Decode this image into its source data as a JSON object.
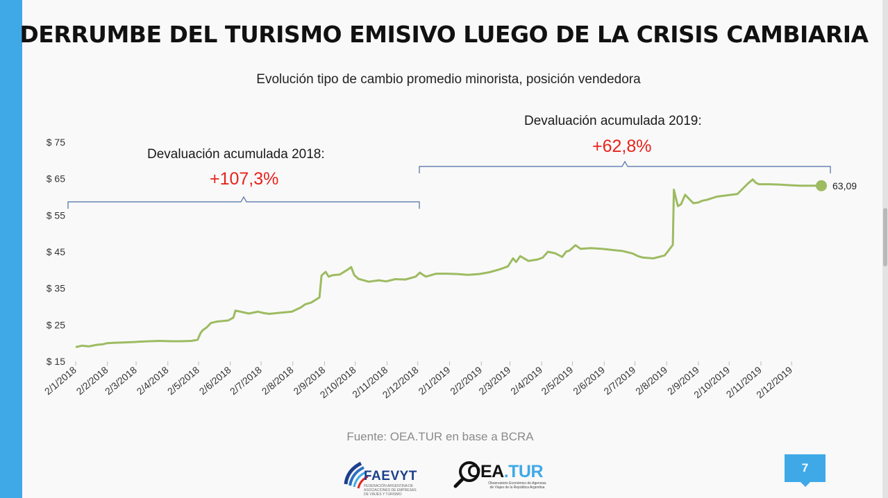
{
  "slide": {
    "title": "DERRUMBE DEL TURISMO EMISIVO LUEGO DE LA CRISIS CAMBIARIA",
    "source": "Fuente: OEA.TUR en base a BCRA",
    "page_number": "7",
    "logos": {
      "faevyt_name": "FAEVYT",
      "faevyt_subtitle": "FEDERACIÓN ARGENTINA DE ASOCIACIONES DE EMPRESAS DE VIAJES Y TURISMO",
      "oea_name": "OEA",
      "oea_suffix": ".TUR",
      "oea_subtitle": "Observatorio Económico de Agencias de Viajes de la República Argentina"
    },
    "colors": {
      "accent": "#3fa9e8",
      "line": "#9dbb61",
      "highlight": "#e8221b"
    }
  },
  "chart_data": {
    "type": "line",
    "title": "Evolución tipo de cambio promedio minorista, posición vendedora",
    "xlabel": "",
    "ylabel": "",
    "y_ticks": [
      "$ 15",
      "$ 25",
      "$ 35",
      "$ 45",
      "$ 55",
      "$ 65",
      "$ 75"
    ],
    "ylim": [
      15,
      75
    ],
    "x_ticks": [
      "2/1/2018",
      "2/2/2018",
      "2/3/2018",
      "2/4/2018",
      "2/5/2018",
      "2/6/2018",
      "2/7/2018",
      "2/8/2018",
      "2/9/2018",
      "2/10/2018",
      "2/11/2018",
      "2/12/2018",
      "2/1/2019",
      "2/2/2019",
      "2/3/2019",
      "2/4/2019",
      "2/5/2019",
      "2/6/2019",
      "2/7/2019",
      "2/8/2019",
      "2/9/2019",
      "2/10/2019",
      "2/11/2019",
      "2/12/2019"
    ],
    "grid": false,
    "series": [
      {
        "color": "#9dbb61",
        "x": [
          "2018-01-02",
          "2018-01-08",
          "2018-01-15",
          "2018-01-22",
          "2018-01-29",
          "2018-02-02",
          "2018-02-10",
          "2018-02-20",
          "2018-02-28",
          "2018-03-05",
          "2018-03-15",
          "2018-03-25",
          "2018-04-05",
          "2018-04-15",
          "2018-04-25",
          "2018-05-01",
          "2018-05-04",
          "2018-05-06",
          "2018-05-10",
          "2018-05-14",
          "2018-05-20",
          "2018-05-31",
          "2018-06-05",
          "2018-06-07",
          "2018-06-15",
          "2018-06-20",
          "2018-06-29",
          "2018-07-05",
          "2018-07-10",
          "2018-07-20",
          "2018-08-01",
          "2018-08-10",
          "2018-08-14",
          "2018-08-20",
          "2018-08-28",
          "2018-08-30",
          "2018-09-03",
          "2018-09-06",
          "2018-09-10",
          "2018-09-17",
          "2018-09-25",
          "2018-09-28",
          "2018-10-01",
          "2018-10-05",
          "2018-10-10",
          "2018-10-15",
          "2018-10-25",
          "2018-11-01",
          "2018-11-10",
          "2018-11-20",
          "2018-11-30",
          "2018-12-04",
          "2018-12-07",
          "2018-12-10",
          "2018-12-15",
          "2018-12-20",
          "2018-12-31",
          "2019-01-10",
          "2019-01-20",
          "2019-01-31",
          "2019-02-10",
          "2019-02-20",
          "2019-02-28",
          "2019-03-05",
          "2019-03-08",
          "2019-03-12",
          "2019-03-20",
          "2019-03-29",
          "2019-04-03",
          "2019-04-08",
          "2019-04-15",
          "2019-04-22",
          "2019-04-26",
          "2019-04-29",
          "2019-05-05",
          "2019-05-10",
          "2019-05-20",
          "2019-05-31",
          "2019-06-10",
          "2019-06-20",
          "2019-06-30",
          "2019-07-05",
          "2019-07-10",
          "2019-07-20",
          "2019-07-31",
          "2019-08-05",
          "2019-08-08",
          "2019-08-09",
          "2019-08-12",
          "2019-08-13",
          "2019-08-16",
          "2019-08-20",
          "2019-08-28",
          "2019-09-02",
          "2019-09-06",
          "2019-09-10",
          "2019-09-20",
          "2019-10-01",
          "2019-10-10",
          "2019-10-20",
          "2019-10-25",
          "2019-10-28",
          "2019-10-31",
          "2019-11-10",
          "2019-11-20",
          "2019-12-01",
          "2019-12-10",
          "2019-12-20",
          "2019-12-31"
        ],
        "values": [
          18.9,
          19.3,
          19.1,
          19.5,
          19.7,
          20.0,
          20.1,
          20.2,
          20.3,
          20.4,
          20.5,
          20.6,
          20.5,
          20.5,
          20.6,
          20.9,
          22.8,
          23.5,
          24.3,
          25.5,
          25.9,
          26.2,
          27.0,
          28.9,
          28.4,
          28.1,
          28.6,
          28.2,
          28.0,
          28.3,
          28.6,
          29.8,
          30.6,
          31.1,
          32.5,
          38.5,
          39.5,
          38.2,
          38.6,
          38.8,
          40.2,
          40.8,
          38.6,
          37.6,
          37.2,
          36.8,
          37.2,
          36.9,
          37.5,
          37.4,
          38.2,
          39.3,
          38.7,
          38.2,
          38.6,
          39.0,
          39.0,
          38.9,
          38.7,
          38.9,
          39.4,
          40.2,
          41.0,
          43.2,
          42.2,
          43.8,
          42.5,
          42.9,
          43.4,
          45.0,
          44.6,
          43.6,
          45.1,
          45.3,
          46.8,
          45.8,
          46.0,
          45.8,
          45.5,
          45.2,
          44.5,
          43.8,
          43.4,
          43.2,
          44.0,
          45.8,
          46.9,
          62.0,
          58.5,
          57.5,
          58.0,
          60.6,
          58.3,
          58.5,
          59.0,
          59.2,
          60.1,
          60.5,
          60.8,
          63.6,
          64.8,
          63.9,
          63.5,
          63.5,
          63.4,
          63.2,
          63.1,
          63.1,
          63.09
        ]
      }
    ],
    "last_value_label": "63,09",
    "annotations": [
      {
        "label": "Devaluación acumulada 2018:",
        "value": "+107,3%",
        "from": "2018-01-01",
        "to": "2018-12-01"
      },
      {
        "label": "Devaluación acumulada 2019:",
        "value": "+62,8%",
        "from": "2018-12-01",
        "to": "2020-01-01"
      }
    ]
  }
}
